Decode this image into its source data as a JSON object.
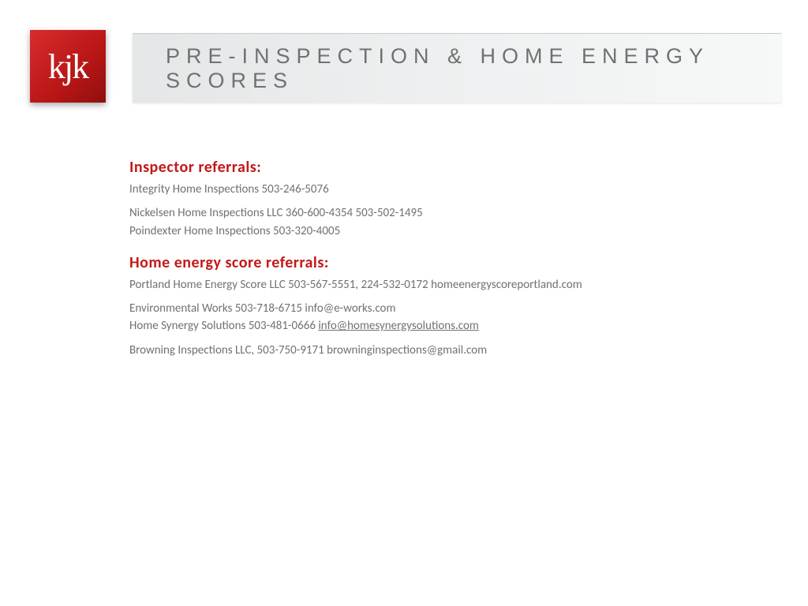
{
  "logo": {
    "text": "kjk"
  },
  "header": {
    "title": "PRE-INSPECTION & HOME ENERGY SCORES"
  },
  "sections": {
    "inspector": {
      "heading": "Inspector referrals:",
      "block1_line1": "Integrity Home Inspections 503-246-5076",
      "block2_line1": "Nickelsen Home Inspections LLC 360-600-4354  503-502-1495",
      "block2_line2": "Poindexter Home Inspections 503-320-4005"
    },
    "energy": {
      "heading": "Home energy score referrals:",
      "block1_line1": "Portland Home Energy Score LLC 503-567-5551, 224-532-0172 homeenergyscoreportland.com",
      "block2_line1": "Environmental  Works  503-718-6715 info@e-works.com",
      "block2_line2a": "Home Synergy Solutions 503-481-0666 ",
      "block2_link": "info@homesynergysolutions.com",
      "block3_line1": "Browning Inspections LLC, 503-750-9171 browninginspections@gmail.com"
    }
  },
  "colors": {
    "accent_red": "#c31818",
    "logo_red_start": "#d82c2c",
    "logo_red_end": "#8e0f0f",
    "body_text": "#6f7172",
    "title_text": "#6f7273",
    "title_bg_start": "#e4e6e7",
    "title_bg_end": "#f7f8f8"
  }
}
